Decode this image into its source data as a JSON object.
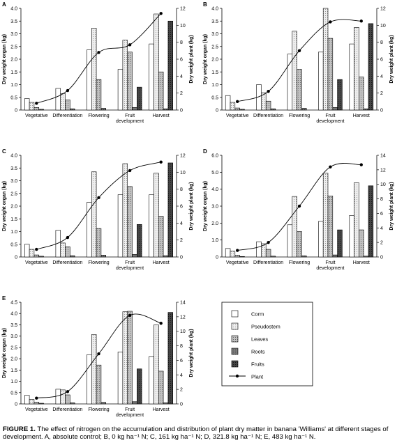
{
  "figure": {
    "caption_label": "FIGURE 1.",
    "caption_text": "The effect of nitrogen on the accumulation and distribution of plant dry matter in banana 'Williams' at different stages of development. A, absolute control; B, 0 kg ha⁻¹ N; C, 161 kg ha⁻¹ N; D, 321.8 kg ha⁻¹ N; E, 483 kg ha⁻¹ N."
  },
  "legend": {
    "entries": [
      {
        "name": "Corm",
        "color": "#ffffff",
        "pattern": "none"
      },
      {
        "name": "Pseudostem",
        "color": "#e6e6e6",
        "pattern": "dots"
      },
      {
        "name": "Leaves",
        "color": "#b0b0b0",
        "pattern": "dots"
      },
      {
        "name": "Roots",
        "color": "#6e6e6e",
        "pattern": "dots"
      },
      {
        "name": "Fruits",
        "color": "#3c3c3c",
        "pattern": "dots"
      },
      {
        "name": "Plant",
        "color": "#000000",
        "pattern": "line-marker"
      }
    ]
  },
  "chart_data": [
    {
      "panel": "A",
      "type": "bar",
      "categories": [
        "Vegetative",
        "Differentiation",
        "Flowering",
        "Fruit\ndevelopment",
        "Harvest"
      ],
      "ylabel": "Dry weight organ (kg)",
      "y2label": "Dry weight plant (kg)",
      "ylim": [
        0,
        4.0
      ],
      "yticks": [
        "0",
        "0.5",
        "1.0",
        "1.5",
        "2.0",
        "2.5",
        "3.0",
        "3.5",
        "4.0"
      ],
      "y2lim": [
        0,
        12
      ],
      "y2ticks": [
        "0",
        "2",
        "4",
        "6",
        "8",
        "10",
        "12"
      ],
      "series": [
        {
          "name": "Corm",
          "values": [
            0.45,
            0.85,
            2.37,
            1.6,
            2.6
          ]
        },
        {
          "name": "Pseudostem",
          "values": [
            0.3,
            0.65,
            3.22,
            2.75,
            3.78
          ]
        },
        {
          "name": "Leaves",
          "values": [
            0.1,
            0.4,
            1.2,
            2.28,
            1.5
          ]
        },
        {
          "name": "Roots",
          "values": [
            0.03,
            0.05,
            0.07,
            0.1,
            0.05
          ]
        },
        {
          "name": "Fruits",
          "values": [
            0,
            0,
            0,
            0.9,
            3.5
          ]
        }
      ],
      "plant": [
        0.8,
        2.3,
        6.8,
        7.7,
        11.4
      ]
    },
    {
      "panel": "B",
      "type": "bar",
      "categories": [
        "Vegetative",
        "Differentiation",
        "Flowering",
        "Fruit\ndevelopment",
        "Harvest"
      ],
      "ylabel": "Dry weight organ (kg)",
      "y2label": "Dry weight plant (kg)",
      "ylim": [
        0,
        4.0
      ],
      "yticks": [
        "0",
        "0.5",
        "1.0",
        "1.5",
        "2.0",
        "2.5",
        "3.0",
        "3.5",
        "4.0"
      ],
      "y2lim": [
        0,
        12
      ],
      "y2ticks": [
        "0",
        "2",
        "4",
        "6",
        "8",
        "10",
        "12"
      ],
      "series": [
        {
          "name": "Corm",
          "values": [
            0.57,
            1.0,
            2.2,
            2.28,
            2.6
          ]
        },
        {
          "name": "Pseudostem",
          "values": [
            0.3,
            0.68,
            3.1,
            4.0,
            3.25
          ]
        },
        {
          "name": "Leaves",
          "values": [
            0.08,
            0.35,
            1.6,
            2.82,
            1.3
          ]
        },
        {
          "name": "Roots",
          "values": [
            0.03,
            0.05,
            0.07,
            0.1,
            0.05
          ]
        },
        {
          "name": "Fruits",
          "values": [
            0,
            0,
            0,
            1.2,
            3.4
          ]
        }
      ],
      "plant": [
        1.0,
        2.2,
        7.0,
        10.4,
        10.5
      ]
    },
    {
      "panel": "C",
      "type": "bar",
      "categories": [
        "Vegetative",
        "Differentiation",
        "Flowering",
        "Fruit\ndevelopment",
        "Harvest"
      ],
      "ylabel": "Dry weight organ (kg)",
      "y2label": "Dry weight plant (kg)",
      "ylim": [
        0,
        4.0
      ],
      "yticks": [
        "0",
        "0.5",
        "1.0",
        "1.5",
        "2.0",
        "2.5",
        "3.0",
        "3.5",
        "4.0"
      ],
      "y2lim": [
        0,
        12
      ],
      "y2ticks": [
        "0",
        "2",
        "4",
        "6",
        "8",
        "10",
        "12"
      ],
      "series": [
        {
          "name": "Corm",
          "values": [
            0.5,
            1.05,
            2.15,
            2.45,
            2.45
          ]
        },
        {
          "name": "Pseudostem",
          "values": [
            0.3,
            0.55,
            3.35,
            3.67,
            3.3
          ]
        },
        {
          "name": "Leaves",
          "values": [
            0.08,
            0.4,
            1.12,
            2.77,
            1.6
          ]
        },
        {
          "name": "Roots",
          "values": [
            0.03,
            0.05,
            0.07,
            0.1,
            0.05
          ]
        },
        {
          "name": "Fruits",
          "values": [
            0,
            0,
            0,
            1.28,
            3.7
          ]
        }
      ],
      "plant": [
        0.9,
        2.3,
        7.0,
        10.2,
        11.2
      ]
    },
    {
      "panel": "D",
      "type": "bar",
      "categories": [
        "Vegetative",
        "Differentiation",
        "Flowering",
        "Fruit\ndevelopment",
        "Harvest"
      ],
      "ylabel": "Dry weight organ (kg)",
      "y2label": "Dry weight plant (kg)",
      "ylim": [
        0,
        6.0
      ],
      "yticks": [
        "0",
        "1.0",
        "2.0",
        "3.0",
        "4.0",
        "5.0",
        "6.0"
      ],
      "y2lim": [
        0,
        14
      ],
      "y2ticks": [
        "0",
        "2",
        "4",
        "6",
        "8",
        "10",
        "12",
        "14"
      ],
      "series": [
        {
          "name": "Corm",
          "values": [
            0.5,
            0.9,
            1.9,
            2.1,
            2.45
          ]
        },
        {
          "name": "Pseudostem",
          "values": [
            0.35,
            0.78,
            3.57,
            4.95,
            4.38
          ]
        },
        {
          "name": "Leaves",
          "values": [
            0.1,
            0.45,
            1.5,
            3.6,
            1.6
          ]
        },
        {
          "name": "Roots",
          "values": [
            0.03,
            0.05,
            0.07,
            0.12,
            0.05
          ]
        },
        {
          "name": "Fruits",
          "values": [
            0,
            0,
            0,
            1.6,
            4.2
          ]
        }
      ],
      "plant": [
        0.9,
        2.0,
        7.0,
        12.4,
        12.7
      ]
    },
    {
      "panel": "E",
      "type": "bar",
      "categories": [
        "Vegetative",
        "Differentiation",
        "Flowering",
        "Fruit\ndevelopment",
        "Harvest"
      ],
      "ylabel": "Dry weight organ (kg)",
      "y2label": "Dry weight plant (kg)",
      "ylim": [
        0,
        4.5
      ],
      "yticks": [
        "0",
        "0.5",
        "1.0",
        "1.5",
        "2.0",
        "2.5",
        "3.0",
        "3.5",
        "4.0",
        "4.5"
      ],
      "y2lim": [
        0,
        14
      ],
      "y2ticks": [
        "0",
        "2",
        "4",
        "6",
        "8",
        "10",
        "12",
        "14"
      ],
      "series": [
        {
          "name": "Corm",
          "values": [
            0.38,
            0.65,
            2.18,
            2.3,
            2.1
          ]
        },
        {
          "name": "Pseudostem",
          "values": [
            0.2,
            0.62,
            3.07,
            4.08,
            3.5
          ]
        },
        {
          "name": "Leaves",
          "values": [
            0.08,
            0.4,
            1.72,
            4.1,
            1.45
          ]
        },
        {
          "name": "Roots",
          "values": [
            0.03,
            0.05,
            0.07,
            0.1,
            0.05
          ]
        },
        {
          "name": "Fruits",
          "values": [
            0,
            0,
            0,
            1.55,
            4.05
          ]
        }
      ],
      "plant": [
        0.8,
        1.7,
        6.9,
        12.2,
        11.1
      ]
    }
  ]
}
